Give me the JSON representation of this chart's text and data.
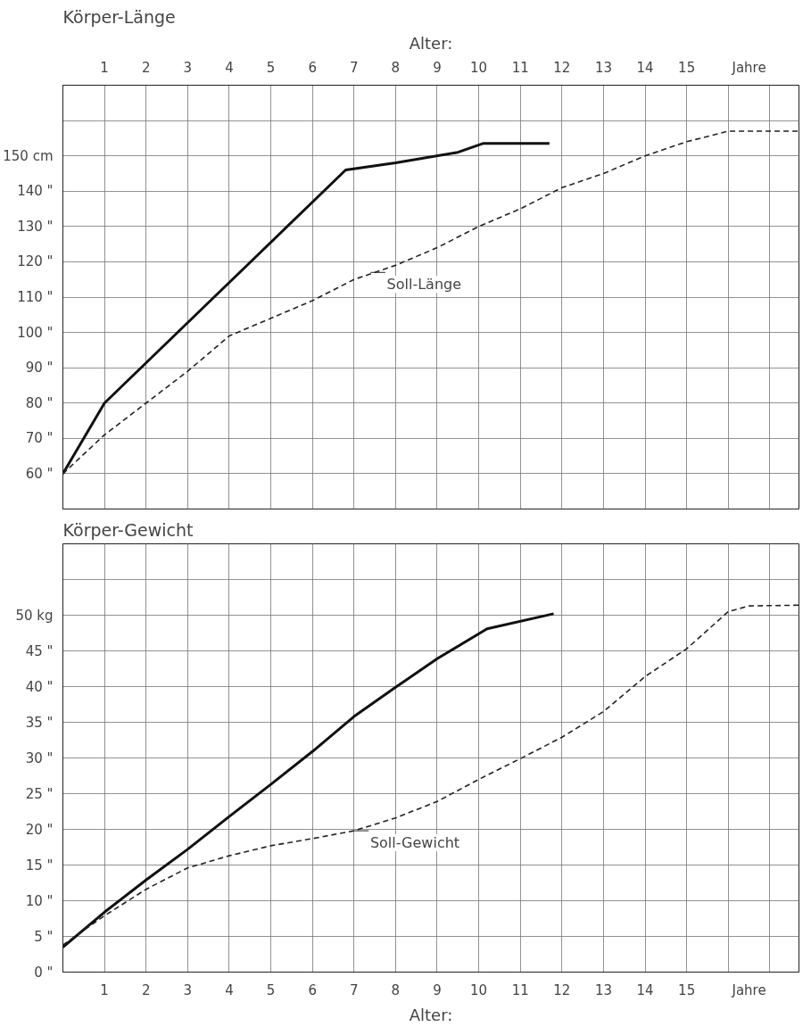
{
  "chart_data": [
    {
      "type": "line",
      "title": "Körper-Länge",
      "xlim": [
        0,
        17.7
      ],
      "xticks": [
        0,
        1,
        2,
        3,
        4,
        5,
        6,
        7,
        8,
        9,
        10,
        11,
        12,
        13,
        14,
        15,
        16,
        17
      ],
      "x2label": "Alter:",
      "x2lim": [
        0,
        17.7
      ],
      "x2ticks": [
        {
          "value": 0,
          "label": null
        },
        1,
        2,
        3,
        4,
        5,
        6,
        7,
        8,
        9,
        10,
        11,
        12,
        13,
        14,
        15,
        {
          "value": 16,
          "label": null
        },
        {
          "value": 16.5,
          "label": "Jahre"
        },
        {
          "value": 17,
          "label": null
        }
      ],
      "ylim": [
        50,
        170
      ],
      "yticks": [
        {
          "value": 50,
          "label": null
        },
        {
          "value": 60,
          "label": "60 \""
        },
        {
          "value": 70,
          "label": "70 \""
        },
        {
          "value": 80,
          "label": "80 \""
        },
        {
          "value": 90,
          "label": "90 \""
        },
        {
          "value": 100,
          "label": "100 \""
        },
        {
          "value": 110,
          "label": "110 \""
        },
        {
          "value": 120,
          "label": "120 \""
        },
        {
          "value": 130,
          "label": "130 \""
        },
        {
          "value": 140,
          "label": "140 \""
        },
        {
          "value": 150,
          "label": "150 cm"
        },
        {
          "value": 160,
          "label": null
        },
        {
          "value": 170,
          "label": null
        }
      ],
      "grid": true,
      "tick_labels": "y",
      "series": [
        {
          "color": "#111111",
          "line_style": "solid",
          "x": [
            0,
            1,
            6.8,
            8,
            9.5,
            10.1,
            11.7
          ],
          "values": [
            60,
            80,
            146,
            148,
            151,
            153.5,
            153.5
          ]
        },
        {
          "color": "#222222",
          "line_style": "dashed",
          "x": [
            0,
            1,
            2,
            3,
            4,
            5,
            6,
            7,
            8,
            9,
            10,
            11,
            12,
            13,
            14,
            15,
            16,
            17.7
          ],
          "values": [
            60,
            71,
            80,
            89,
            99,
            104,
            109,
            115,
            119,
            124,
            130,
            135,
            141,
            145,
            150,
            154,
            157,
            157
          ]
        }
      ],
      "annotations": [
        {
          "text": "Soll-Länge",
          "x": 7.4,
          "y": 117
        }
      ]
    },
    {
      "type": "line",
      "title": "Körper-Gewicht",
      "xlabel": "Alter:",
      "xlim": [
        0,
        17.7
      ],
      "xticks": [
        {
          "value": 0,
          "label": null
        },
        1,
        2,
        3,
        4,
        5,
        6,
        7,
        8,
        9,
        10,
        11,
        12,
        13,
        14,
        15,
        {
          "value": 16,
          "label": null
        },
        {
          "value": 16.5,
          "label": "Jahre"
        },
        {
          "value": 17,
          "label": null
        }
      ],
      "ylim": [
        0,
        60
      ],
      "yticks": [
        {
          "value": 0,
          "label": "0 \""
        },
        {
          "value": 5,
          "label": "5 \""
        },
        {
          "value": 10,
          "label": "10 \""
        },
        {
          "value": 15,
          "label": "15 \""
        },
        {
          "value": 20,
          "label": "20 \""
        },
        {
          "value": 25,
          "label": "25 \""
        },
        {
          "value": 30,
          "label": "30 \""
        },
        {
          "value": 35,
          "label": "35 \""
        },
        {
          "value": 40,
          "label": "40 \""
        },
        {
          "value": 45,
          "label": "45 \""
        },
        {
          "value": 50,
          "label": "50 kg"
        },
        {
          "value": 55,
          "label": null
        },
        {
          "value": 60,
          "label": null
        }
      ],
      "grid": true,
      "series": [
        {
          "color": "#111111",
          "line_style": "solid",
          "x": [
            0,
            1,
            2,
            3,
            4,
            5,
            6,
            7,
            8,
            9,
            10.2,
            11.8
          ],
          "values": [
            3.5,
            8.4,
            12.9,
            17.2,
            21.8,
            26.3,
            30.9,
            35.8,
            39.9,
            43.9,
            48.1,
            50.2
          ]
        },
        {
          "color": "#222222",
          "line_style": "dashed",
          "x": [
            0,
            1,
            2,
            3,
            4,
            5,
            6,
            7,
            8,
            9,
            10,
            11,
            12,
            13,
            14,
            15,
            16,
            16.5,
            17.7
          ],
          "values": [
            3.8,
            7.9,
            11.6,
            14.6,
            16.3,
            17.7,
            18.7,
            19.8,
            21.6,
            23.9,
            27,
            29.9,
            32.9,
            36.5,
            41.4,
            45.3,
            50.5,
            51.3,
            51.4
          ]
        }
      ],
      "annotations": [
        {
          "text": "Soll-Gewicht",
          "x": 7,
          "y": 19.8
        }
      ]
    }
  ]
}
